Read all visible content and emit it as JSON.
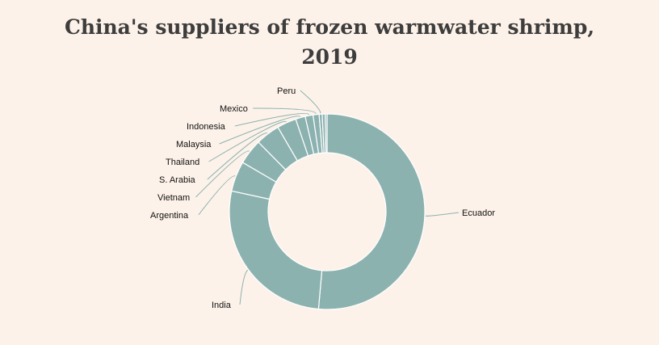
{
  "chart_data": {
    "type": "pie",
    "title_line1": "China's suppliers of frozen warmwater shrimp,",
    "title_line2": "2019",
    "donut": true,
    "colors": {
      "slice": "#8cb2b0",
      "border": "#ffffff",
      "background": "#fdf2e9",
      "title": "#3d3d3d"
    },
    "slices": [
      {
        "label": "Ecuador",
        "value": 51.4
      },
      {
        "label": "India",
        "value": 27.0
      },
      {
        "label": "Argentina",
        "value": 5.0
      },
      {
        "label": "Vietnam",
        "value": 4.2
      },
      {
        "label": "S. Arabia",
        "value": 4.0
      },
      {
        "label": "Thailand",
        "value": 3.2
      },
      {
        "label": "Malaysia",
        "value": 1.6
      },
      {
        "label": "Indonesia",
        "value": 1.3
      },
      {
        "label": "Mexico",
        "value": 1.0
      },
      {
        "label": "Peru",
        "value": 0.5
      },
      {
        "label": "",
        "value": 0.5
      },
      {
        "label": "",
        "value": 0.3
      }
    ]
  }
}
